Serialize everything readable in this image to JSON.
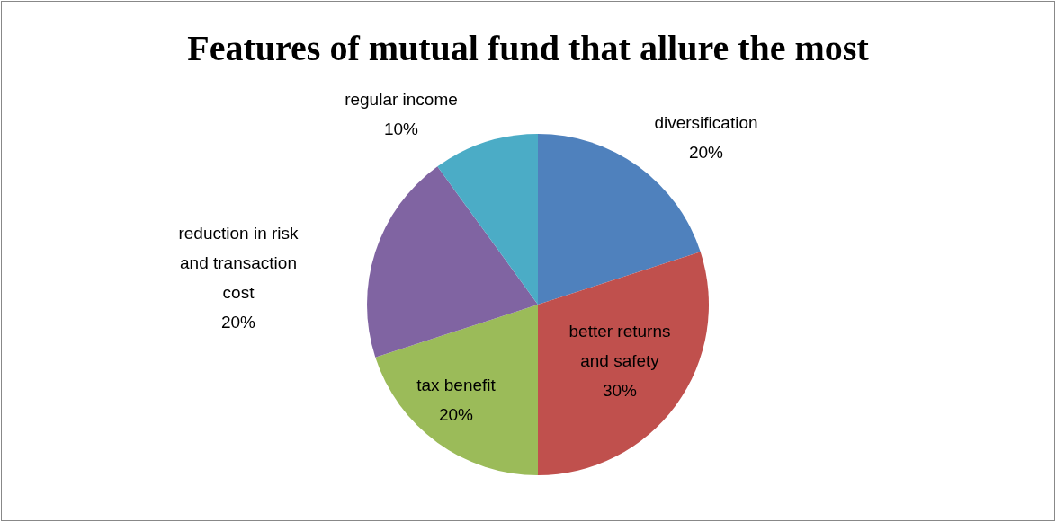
{
  "chart_data": {
    "type": "pie",
    "title": "Features of mutual fund that allure the most",
    "categories": [
      "diversification",
      "better returns and safety",
      "tax benefit",
      "reduction in risk and transaction cost",
      "regular income"
    ],
    "values": [
      20,
      30,
      20,
      20,
      10
    ],
    "value_labels": [
      "20%",
      "30%",
      "20%",
      "20%",
      "10%"
    ],
    "colors": [
      "#4f81bd",
      "#c0504d",
      "#9bbb59",
      "#8064a2",
      "#4bacc6"
    ]
  }
}
